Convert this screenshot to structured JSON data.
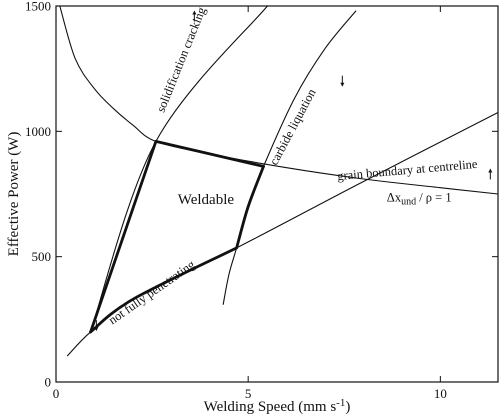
{
  "chart_data": {
    "type": "line",
    "xlabel": "Welding Speed (mm s",
    "xlabel_sup": "-1",
    "xlabel_end": ")",
    "ylabel": "Effective Power (W)",
    "xlim": [
      0,
      11.5
    ],
    "ylim": [
      0,
      1500
    ],
    "xticks": [
      0,
      5,
      10
    ],
    "yticks": [
      0,
      500,
      1000,
      1500
    ],
    "grid": false,
    "legend": "none",
    "series": [
      {
        "key": "solidification",
        "x": [
          0.9,
          2.6,
          5.5
        ],
        "y": [
          200,
          960,
          1500
        ],
        "weight": "thin"
      },
      {
        "key": "grain",
        "x": [
          0.1,
          0.5,
          1.0,
          1.5,
          2.0,
          2.6,
          4.0,
          6.0,
          8.0,
          10.0,
          11.5
        ],
        "y": [
          1500,
          1290,
          1170,
          1090,
          1025,
          960,
          910,
          855,
          810,
          775,
          750
        ],
        "weight": "thin"
      },
      {
        "key": "carbide",
        "x": [
          4.35,
          4.5,
          4.7,
          5.0,
          5.4,
          6.2,
          7.0,
          7.8
        ],
        "y": [
          310,
          430,
          535,
          700,
          860,
          1130,
          1330,
          1480
        ],
        "weight": "thin"
      },
      {
        "key": "penetration",
        "x": [
          0.3,
          0.9,
          2.0,
          4.7,
          8.0,
          11.5
        ],
        "y": [
          105,
          200,
          330,
          535,
          800,
          1075
        ],
        "weight": "thin"
      },
      {
        "key": "weldable_left",
        "x": [
          0.9,
          2.6
        ],
        "y": [
          200,
          960
        ],
        "weight": "thick"
      },
      {
        "key": "weldable_top",
        "x": [
          2.6,
          4.0,
          5.4
        ],
        "y": [
          960,
          910,
          860
        ],
        "weight": "thick"
      },
      {
        "key": "weldable_right",
        "x": [
          5.4,
          5.0,
          4.7
        ],
        "y": [
          860,
          700,
          535
        ],
        "weight": "thick"
      },
      {
        "key": "weldable_bottom",
        "x": [
          0.9,
          2.0,
          4.7
        ],
        "y": [
          200,
          330,
          535
        ],
        "weight": "thick"
      }
    ],
    "annotations": [
      {
        "key": "solid",
        "text": "solidification cracking",
        "x": 3.35,
        "y": 1280,
        "angle": -68
      },
      {
        "key": "carbide",
        "text": "carbide liquation",
        "x": 6.25,
        "y": 1010,
        "angle": -62
      },
      {
        "key": "grain",
        "text": "grain boundary at centreline",
        "x": 9.15,
        "y": 830,
        "angle": -5
      },
      {
        "key": "penetr",
        "text": "not fully penetrating",
        "x": 2.55,
        "y": 345,
        "angle": -35
      },
      {
        "key": "weldable",
        "text": "Weldable",
        "x": 3.9,
        "y": 710,
        "angle": 0
      }
    ],
    "criterion": {
      "lhs": "Δx",
      "sub": "und",
      "rhs": " / ρ = 1",
      "x": 9.45,
      "y": 720
    },
    "arrows": [
      {
        "key": "arrow-solid",
        "x": 3.6,
        "y": 1460,
        "dir": "up"
      },
      {
        "key": "arrow-carbide",
        "x": 7.45,
        "y": 1200,
        "dir": "down"
      },
      {
        "key": "arrow-grain",
        "x": 11.3,
        "y": 830,
        "dir": "up"
      },
      {
        "key": "arrow-penetr",
        "x": 1.05,
        "y": 225,
        "dir": "down"
      }
    ]
  }
}
